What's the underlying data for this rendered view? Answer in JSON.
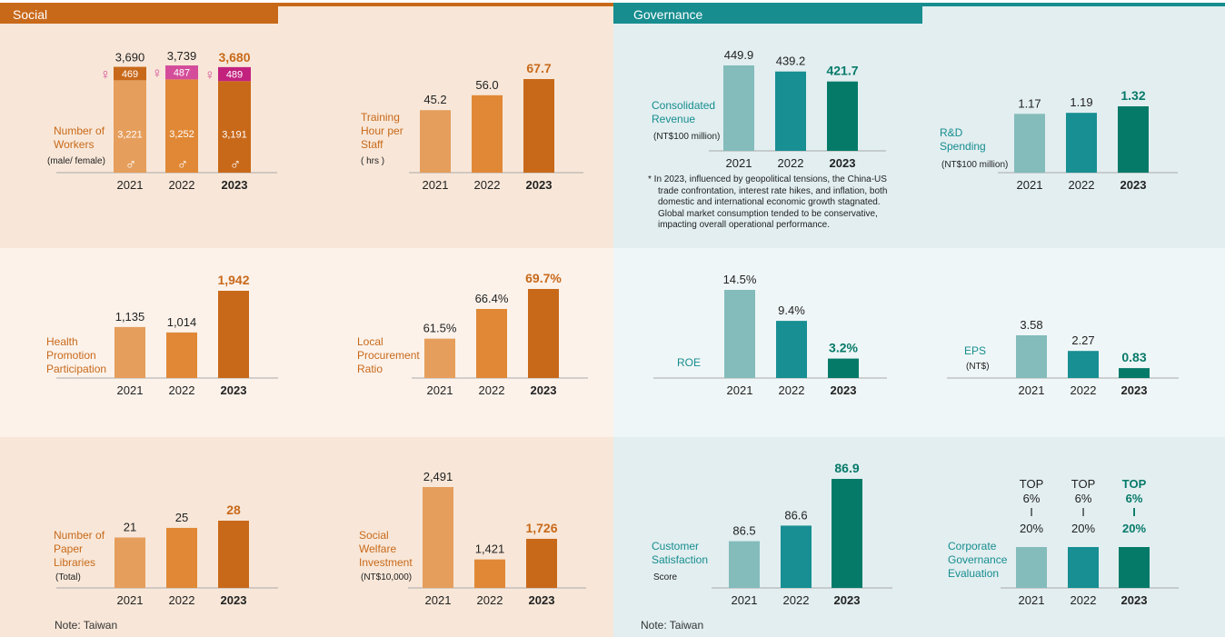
{
  "colors": {
    "social_accent": "#c8691a",
    "social_bar_2021": "#e59e5c",
    "social_bar_2022": "#e08836",
    "social_bar_2023": "#c8691a",
    "female_bar": "#d44d9a",
    "female_latest": "#c2227e",
    "gov_accent": "#178d8f",
    "gov_bar_2021": "#83bcbb",
    "gov_bar_2022": "#178f93",
    "gov_bar_2023": "#067a69",
    "social_panel_dark": "#f8e7d8",
    "social_panel_light": "#fcf2ea",
    "gov_panel_dark": "#e2eef0",
    "gov_panel_light": "#eff6f7"
  },
  "social": {
    "header": "Social",
    "note": "Note: Taiwan",
    "charts": [
      {
        "id": "workers",
        "label_lines": [
          "Number of",
          "Workers"
        ],
        "unit": "(male/ female)",
        "chart_data": {
          "type": "bar",
          "stacked": true,
          "categories": [
            "2021",
            "2022",
            "2023"
          ],
          "series": [
            {
              "name": "male",
              "values": [
                3221,
                3252,
                3191
              ]
            },
            {
              "name": "female",
              "values": [
                469,
                487,
                489
              ]
            }
          ],
          "totals": [
            "3,690",
            "3,739",
            "3,680"
          ],
          "male_labels": [
            "3,221",
            "3,252",
            "3,191"
          ],
          "female_labels": [
            "469",
            "487",
            "489"
          ],
          "ylim": [
            0,
            3739
          ]
        },
        "female_symbol": "♀",
        "male_symbol": "♂"
      },
      {
        "id": "training",
        "label_lines": [
          "Training",
          "Hour per",
          "Staff"
        ],
        "unit": "( hrs )",
        "chart_data": {
          "type": "bar",
          "categories": [
            "2021",
            "2022",
            "2023"
          ],
          "values": [
            45.2,
            56.0,
            67.7
          ],
          "labels": [
            "45.2",
            "56.0",
            "67.7"
          ],
          "ylim": [
            0,
            67.7
          ]
        }
      },
      {
        "id": "health",
        "label_lines": [
          "Health",
          "Promotion",
          "Participation"
        ],
        "unit": "",
        "chart_data": {
          "type": "bar",
          "categories": [
            "2021",
            "2022",
            "2023"
          ],
          "values": [
            1135,
            1014,
            1942
          ],
          "labels": [
            "1,135",
            "1,014",
            "1,942"
          ],
          "ylim": [
            0,
            1942
          ]
        }
      },
      {
        "id": "procurement",
        "label_lines": [
          "Local",
          "Procurement",
          "Ratio"
        ],
        "unit": "",
        "chart_data": {
          "type": "bar",
          "categories": [
            "2021",
            "2022",
            "2023"
          ],
          "values": [
            61.5,
            66.4,
            69.7
          ],
          "labels": [
            "61.5%",
            "66.4%",
            "69.7%"
          ],
          "ylim": [
            0,
            69.7
          ]
        }
      },
      {
        "id": "libraries",
        "label_lines": [
          "Number of",
          "Paper",
          "Libraries"
        ],
        "unit": "(Total)",
        "chart_data": {
          "type": "bar",
          "categories": [
            "2021",
            "2022",
            "2023"
          ],
          "values": [
            21,
            25,
            28
          ],
          "labels": [
            "21",
            "25",
            "28"
          ],
          "ylim": [
            0,
            28
          ]
        }
      },
      {
        "id": "welfare",
        "label_lines": [
          "Social",
          "Welfare",
          "Investment"
        ],
        "unit": "(NT$10,000)",
        "chart_data": {
          "type": "bar",
          "categories": [
            "2021",
            "2022",
            "2023"
          ],
          "values": [
            2491,
            1421,
            1726
          ],
          "labels": [
            "2,491",
            "1,421",
            "1,726"
          ],
          "ylim": [
            0,
            2491
          ]
        }
      }
    ]
  },
  "governance": {
    "header": "Governance",
    "note": "Note: Taiwan",
    "footnote_lines": [
      "* In 2023, influenced by geopolitical tensions, the China-US",
      "trade confrontation, interest rate hikes, and inflation, both",
      "domestic and international economic growth stagnated.",
      "Global market consumption tended to be conservative,",
      "impacting overall operational performance."
    ],
    "charts": [
      {
        "id": "revenue",
        "label_lines": [
          "Consolidated",
          "Revenue"
        ],
        "unit": "(NT$100 million)",
        "chart_data": {
          "type": "bar",
          "categories": [
            "2021",
            "2022",
            "2023"
          ],
          "values": [
            449.9,
            439.2,
            421.7
          ],
          "labels": [
            "449.9",
            "439.2",
            "421.7"
          ],
          "ylim": [
            0,
            449.9
          ]
        }
      },
      {
        "id": "rnd",
        "label_lines": [
          "R&D",
          "Spending"
        ],
        "unit": "(NT$100 million)",
        "chart_data": {
          "type": "bar",
          "categories": [
            "2021",
            "2022",
            "2023"
          ],
          "values": [
            1.17,
            1.19,
            1.32
          ],
          "labels": [
            "1.17",
            "1.19",
            "1.32"
          ],
          "ylim": [
            0,
            1.32
          ]
        }
      },
      {
        "id": "roe",
        "label_lines": [
          "ROE"
        ],
        "unit": "",
        "chart_data": {
          "type": "bar",
          "categories": [
            "2021",
            "2022",
            "2023"
          ],
          "values": [
            14.5,
            9.4,
            3.2
          ],
          "labels": [
            "14.5%",
            "9.4%",
            "3.2%"
          ],
          "ylim": [
            0,
            14.5
          ]
        }
      },
      {
        "id": "eps",
        "label_lines": [
          "EPS"
        ],
        "unit": "(NT$)",
        "chart_data": {
          "type": "bar",
          "categories": [
            "2021",
            "2022",
            "2023"
          ],
          "values": [
            3.58,
            2.27,
            0.83
          ],
          "labels": [
            "3.58",
            "2.27",
            "0.83"
          ],
          "ylim": [
            0,
            3.58
          ]
        }
      },
      {
        "id": "satisfaction",
        "label_lines": [
          "Customer",
          "Satisfaction"
        ],
        "unit": "Score",
        "chart_data": {
          "type": "bar",
          "categories": [
            "2021",
            "2022",
            "2023"
          ],
          "values": [
            86.5,
            86.6,
            86.9
          ],
          "labels": [
            "86.5",
            "86.6",
            "86.9"
          ]
        }
      },
      {
        "id": "cg_eval",
        "label_lines": [
          "Corporate",
          "Governance",
          "Evaluation"
        ],
        "unit": "",
        "chart_data": {
          "type": "bar",
          "categories": [
            "2021",
            "2022",
            "2023"
          ],
          "label_lines": [
            [
              "TOP",
              "6%",
              "I",
              "20%"
            ],
            [
              "TOP",
              "6%",
              "I",
              "20%"
            ],
            [
              "TOP",
              "6%",
              "I",
              "20%"
            ]
          ]
        }
      }
    ]
  }
}
